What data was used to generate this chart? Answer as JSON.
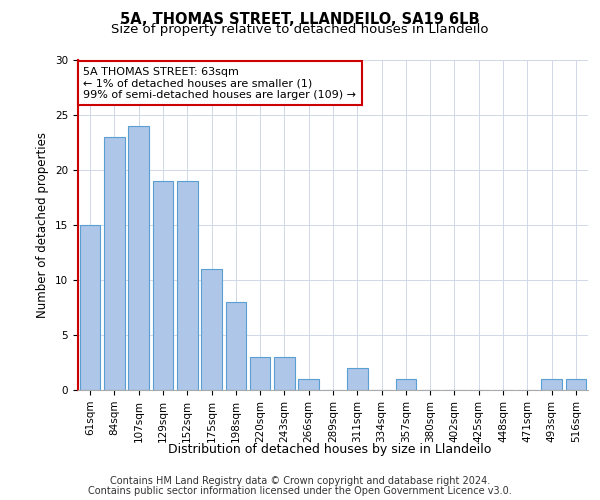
{
  "title_line1": "5A, THOMAS STREET, LLANDEILO, SA19 6LB",
  "title_line2": "Size of property relative to detached houses in Llandeilo",
  "xlabel": "Distribution of detached houses by size in Llandeilo",
  "ylabel": "Number of detached properties",
  "categories": [
    "61sqm",
    "84sqm",
    "107sqm",
    "129sqm",
    "152sqm",
    "175sqm",
    "198sqm",
    "220sqm",
    "243sqm",
    "266sqm",
    "289sqm",
    "311sqm",
    "334sqm",
    "357sqm",
    "380sqm",
    "402sqm",
    "425sqm",
    "448sqm",
    "471sqm",
    "493sqm",
    "516sqm"
  ],
  "values": [
    15,
    23,
    24,
    19,
    19,
    11,
    8,
    3,
    3,
    1,
    0,
    2,
    0,
    1,
    0,
    0,
    0,
    0,
    0,
    1,
    1
  ],
  "bar_color": "#aec6e8",
  "bar_edge_color": "#5a9fd4",
  "annotation_text": "5A THOMAS STREET: 63sqm\n← 1% of detached houses are smaller (1)\n99% of semi-detached houses are larger (109) →",
  "annotation_box_color": "#ffffff",
  "annotation_box_edge_color": "#cc0000",
  "ylim": [
    0,
    30
  ],
  "yticks": [
    0,
    5,
    10,
    15,
    20,
    25,
    30
  ],
  "footer_line1": "Contains HM Land Registry data © Crown copyright and database right 2024.",
  "footer_line2": "Contains public sector information licensed under the Open Government Licence v3.0.",
  "background_color": "#ffffff",
  "grid_color": "#d0d8e8",
  "title_fontsize": 10.5,
  "subtitle_fontsize": 9.5,
  "ylabel_fontsize": 8.5,
  "xlabel_fontsize": 9,
  "tick_fontsize": 7.5,
  "annotation_fontsize": 8,
  "footer_fontsize": 7
}
